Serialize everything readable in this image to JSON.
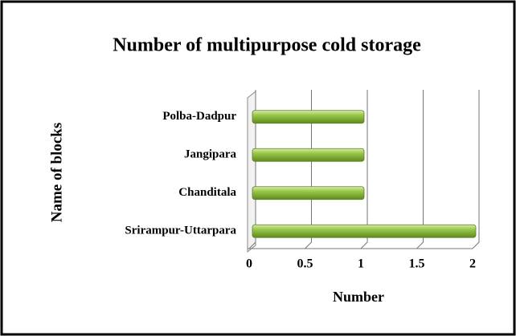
{
  "chart_data": {
    "type": "bar",
    "orientation": "horizontal",
    "title": "Number of multipurpose  cold storage",
    "categories": [
      "Polba-Dadpur",
      "Jangipara",
      "Chanditala",
      "Srirampur-Uttarpara"
    ],
    "values": [
      1,
      1,
      1,
      2
    ],
    "color": "#8fbf3a",
    "xlim": [
      0,
      2
    ],
    "xticks": [
      0,
      0.5,
      1,
      1.5,
      2
    ],
    "grid": true,
    "xlabel": "Number",
    "ylabel": "Name of blocks"
  }
}
